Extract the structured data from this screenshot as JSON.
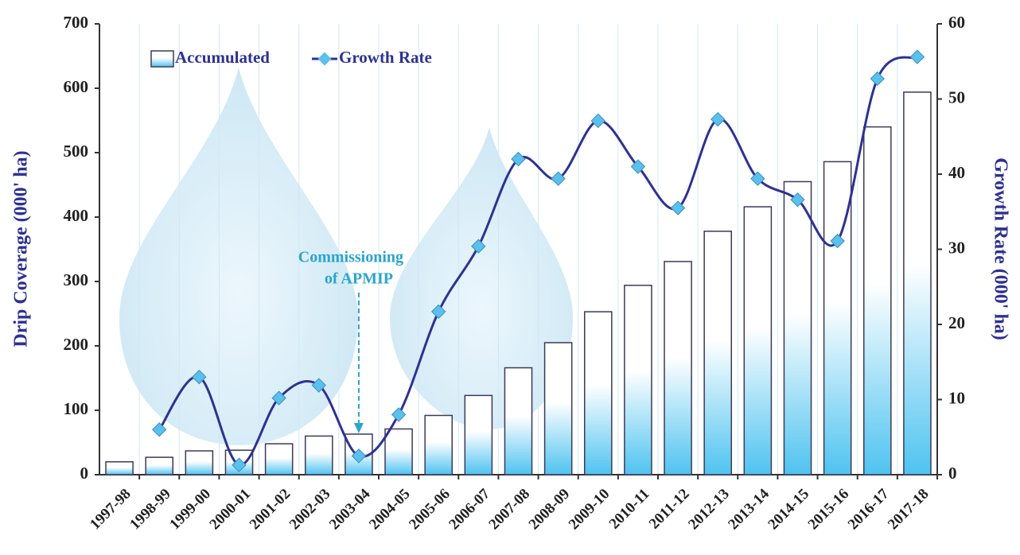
{
  "chart_data": {
    "type": "bar",
    "categories": [
      "1997-98",
      "1998-99",
      "1999-00",
      "2000-01",
      "2001-02",
      "2002-03",
      "2003-04",
      "2004-05",
      "2005-06",
      "2006-07",
      "2007-08",
      "2008-09",
      "2009-10",
      "2010-11",
      "2011-12",
      "2012-13",
      "2013-14",
      "2014-15",
      "2015-16",
      "2016-17",
      "2017-18"
    ],
    "series": [
      {
        "name": "Accumulated",
        "type": "bar",
        "color": "#4fc3f0",
        "values": [
          20,
          27,
          37,
          38,
          48,
          60,
          63,
          71,
          92,
          123,
          166,
          205,
          253,
          294,
          331,
          378,
          416,
          455,
          486,
          540,
          594
        ]
      },
      {
        "name": "Growth Rate",
        "type": "line",
        "axis": "y2",
        "color": "#2e3192",
        "marker_color": "#5bc0eb",
        "values": [
          null,
          6,
          13,
          1.3,
          10.2,
          11.9,
          2.5,
          8,
          21.7,
          30.4,
          42,
          39.4,
          47.1,
          41,
          35.5,
          47.3,
          39.4,
          36.6,
          31.1,
          52.7,
          55.6
        ]
      }
    ],
    "ylabel": "Drip Coverage (000' ha)",
    "y2label": "Growth Rate (000' ha)",
    "ylim": [
      0,
      700
    ],
    "yticks": [
      0,
      100,
      200,
      300,
      400,
      500,
      600,
      700
    ],
    "y2lim": [
      0,
      60
    ],
    "y2ticks": [
      0,
      10,
      20,
      30,
      40,
      50,
      60
    ],
    "annotation": {
      "lines": [
        "Commissioning",
        "of APMIP"
      ],
      "category": 6
    },
    "grid": true
  }
}
